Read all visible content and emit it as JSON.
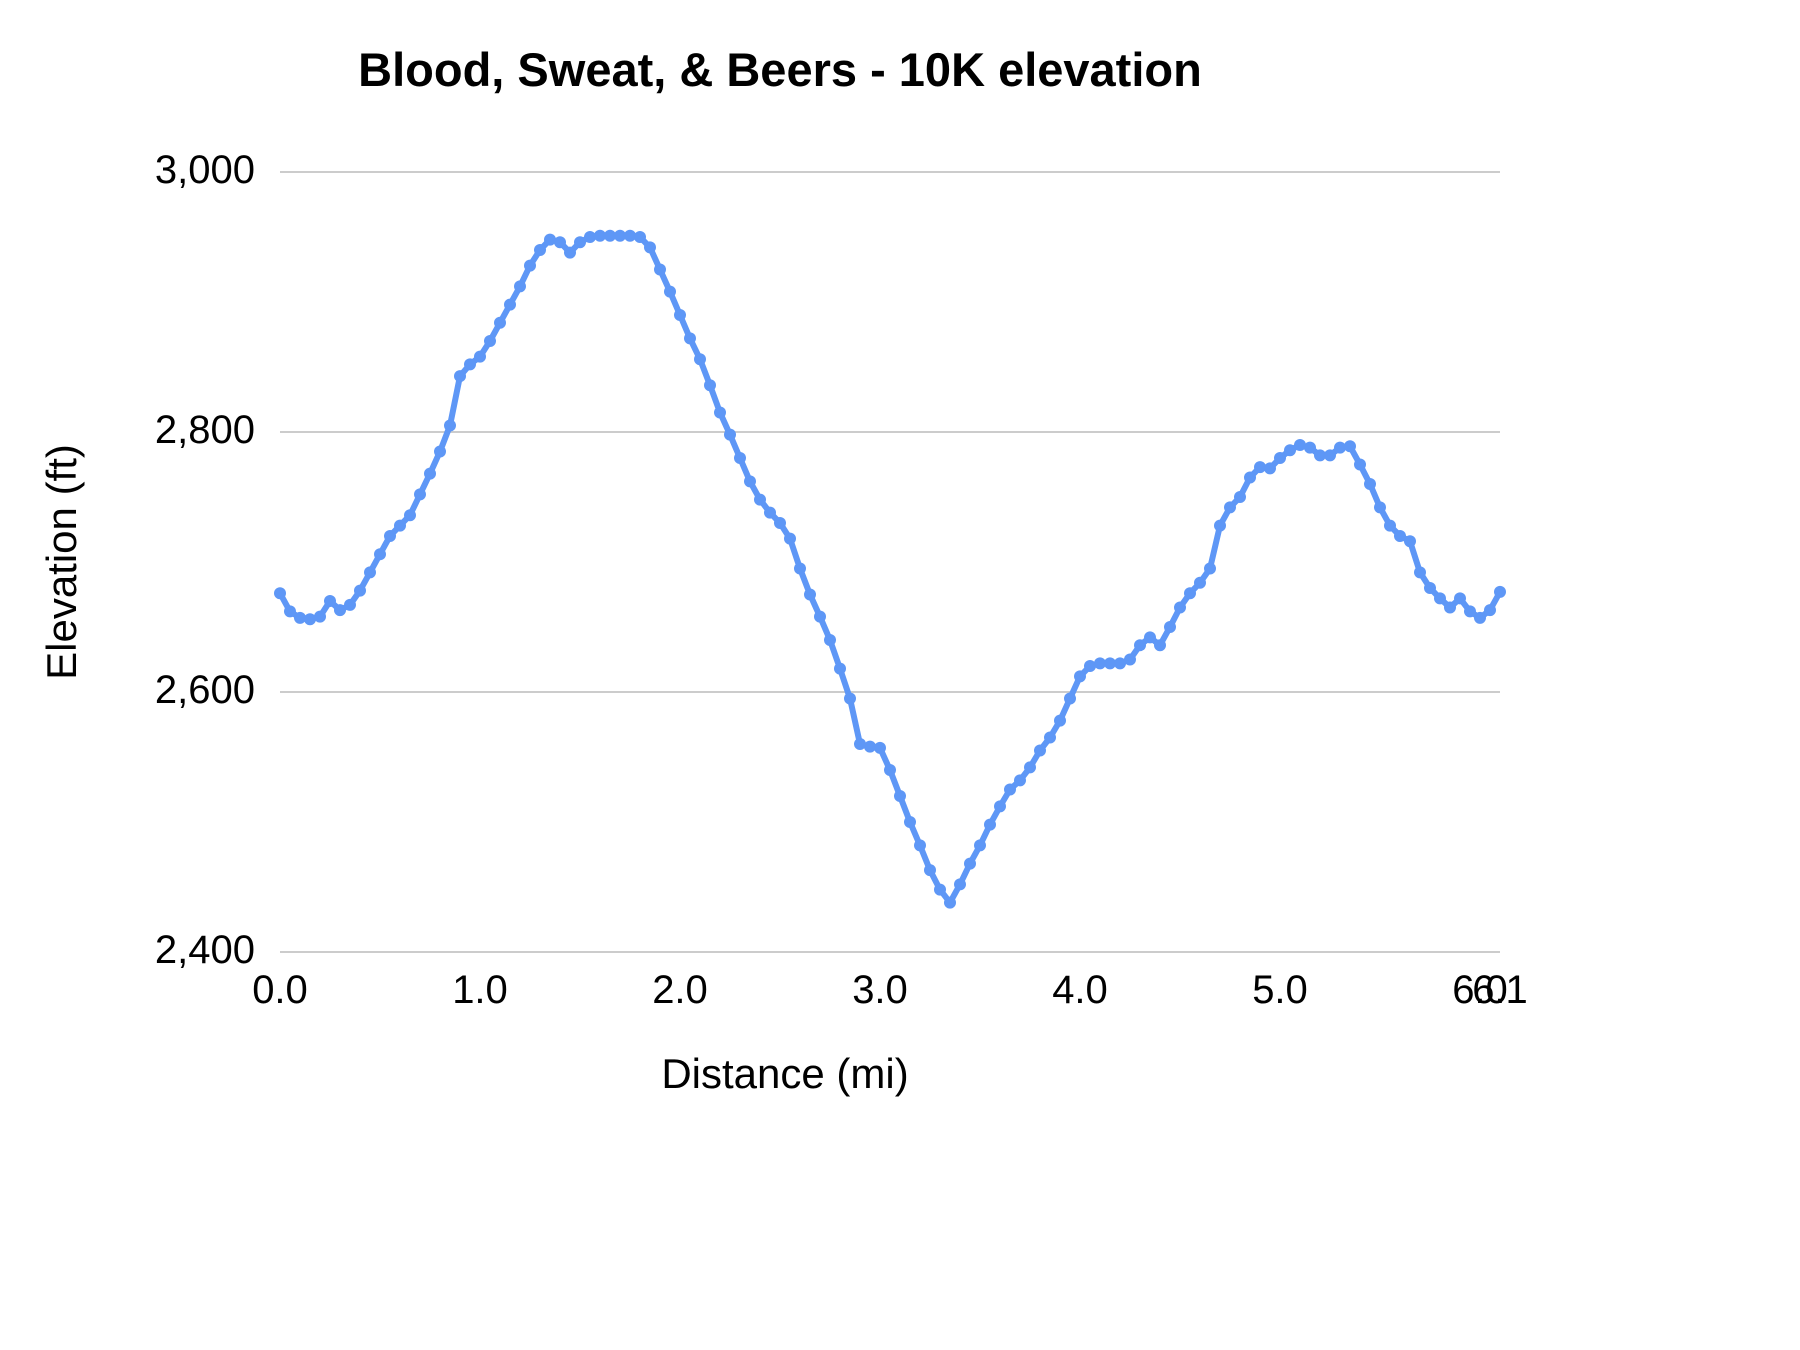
{
  "chart_data": {
    "type": "line",
    "title": "Blood, Sweat, & Beers  - 10K elevation",
    "xlabel": "Distance (mi)",
    "ylabel": "Elevation (ft)",
    "xlim": [
      0,
      6.1
    ],
    "ylim": [
      2400,
      3000
    ],
    "grid": true,
    "legend": "none",
    "line_color": "#5e97f6",
    "grid_color": "#cccccc",
    "x_ticks": [
      "0.0",
      "1.0",
      "2.0",
      "3.0",
      "4.0",
      "5.0",
      "6.0",
      "6.1"
    ],
    "x_tick_values": [
      0,
      1,
      2,
      3,
      4,
      5,
      6,
      6.1
    ],
    "y_ticks": [
      "2,400",
      "2,600",
      "2,800",
      "3,000"
    ],
    "y_tick_values": [
      2400,
      2600,
      2800,
      3000
    ],
    "x": [
      0.0,
      0.05,
      0.1,
      0.15,
      0.2,
      0.25,
      0.3,
      0.35,
      0.4,
      0.45,
      0.5,
      0.55,
      0.6,
      0.65,
      0.7,
      0.75,
      0.8,
      0.85,
      0.9,
      0.95,
      1.0,
      1.05,
      1.1,
      1.15,
      1.2,
      1.25,
      1.3,
      1.35,
      1.4,
      1.45,
      1.5,
      1.55,
      1.6,
      1.65,
      1.7,
      1.75,
      1.8,
      1.85,
      1.9,
      1.95,
      2.0,
      2.05,
      2.1,
      2.15,
      2.2,
      2.25,
      2.3,
      2.35,
      2.4,
      2.45,
      2.5,
      2.55,
      2.6,
      2.65,
      2.7,
      2.75,
      2.8,
      2.85,
      2.9,
      2.95,
      3.0,
      3.05,
      3.1,
      3.15,
      3.2,
      3.25,
      3.3,
      3.35,
      3.4,
      3.45,
      3.5,
      3.55,
      3.6,
      3.65,
      3.7,
      3.75,
      3.8,
      3.85,
      3.9,
      3.95,
      4.0,
      4.05,
      4.1,
      4.15,
      4.2,
      4.25,
      4.3,
      4.35,
      4.4,
      4.45,
      4.5,
      4.55,
      4.6,
      4.65,
      4.7,
      4.75,
      4.8,
      4.85,
      4.9,
      4.95,
      5.0,
      5.05,
      5.1,
      5.15,
      5.2,
      5.25,
      5.3,
      5.35,
      5.4,
      5.45,
      5.5,
      5.55,
      5.6,
      5.65,
      5.7,
      5.75,
      5.8,
      5.85,
      5.9,
      5.95,
      6.0,
      6.05,
      6.1
    ],
    "y": [
      2676,
      2662,
      2657,
      2656,
      2658,
      2670,
      2663,
      2667,
      2678,
      2692,
      2706,
      2720,
      2728,
      2736,
      2752,
      2768,
      2785,
      2805,
      2843,
      2852,
      2858,
      2870,
      2884,
      2898,
      2912,
      2928,
      2940,
      2948,
      2946,
      2938,
      2946,
      2950,
      2951,
      2951,
      2951,
      2951,
      2950,
      2942,
      2925,
      2908,
      2890,
      2872,
      2856,
      2836,
      2815,
      2798,
      2780,
      2762,
      2748,
      2738,
      2730,
      2718,
      2695,
      2675,
      2658,
      2640,
      2618,
      2595,
      2560,
      2558,
      2557,
      2540,
      2520,
      2500,
      2482,
      2463,
      2448,
      2438,
      2452,
      2468,
      2482,
      2498,
      2512,
      2525,
      2532,
      2542,
      2555,
      2565,
      2578,
      2595,
      2612,
      2620,
      2622,
      2622,
      2622,
      2625,
      2636,
      2642,
      2636,
      2650,
      2665,
      2676,
      2684,
      2695,
      2728,
      2742,
      2750,
      2765,
      2773,
      2772,
      2780,
      2786,
      2790,
      2788,
      2782,
      2782,
      2788,
      2789,
      2775,
      2760,
      2742,
      2728,
      2720,
      2716,
      2692,
      2680,
      2672,
      2665,
      2672,
      2662,
      2657,
      2663,
      2677
    ]
  }
}
